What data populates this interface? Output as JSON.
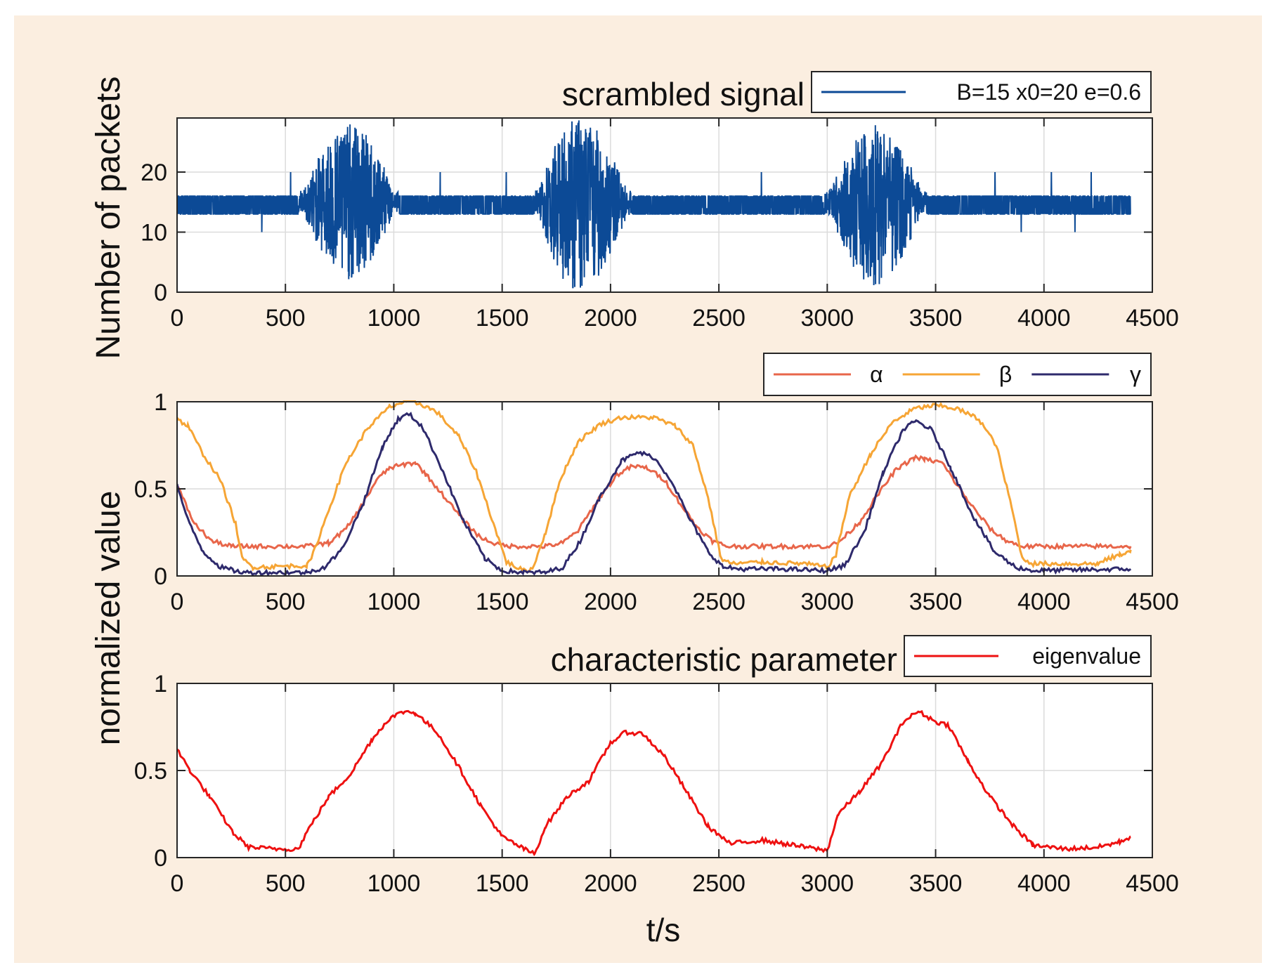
{
  "figure": {
    "background": "#fbeee0",
    "grid_color": "#dcdcdc"
  },
  "shared": {
    "ylabel_upper": "Number of packets",
    "ylabel_lower": "normalized value",
    "xlabel": "t/s"
  },
  "chart_data": [
    {
      "type": "line",
      "title": "scrambled signal",
      "xlim": [
        0,
        4500
      ],
      "ylim": [
        0,
        29
      ],
      "x_ticks": [
        0,
        500,
        1000,
        1500,
        2000,
        2500,
        3000,
        3500,
        4000,
        4500
      ],
      "y_ticks": [
        0,
        10,
        20
      ],
      "legend_location": "top-right",
      "series": [
        {
          "name": "B=15 x0=20 e=0.6",
          "color": "#0c4a96",
          "description": "noisy packet count around 15 with three high-variance bursts",
          "baseline": 15,
          "bursts": [
            {
              "start": 560,
              "peak": 800,
              "end": 1020,
              "min": 2,
              "max": 28
            },
            {
              "start": 1650,
              "peak": 1850,
              "end": 2100,
              "min": 0,
              "max": 29
            },
            {
              "start": 2990,
              "peak": 3220,
              "end": 3460,
              "min": 1,
              "max": 28
            }
          ]
        }
      ]
    },
    {
      "type": "line",
      "title": "",
      "xlim": [
        0,
        4500
      ],
      "ylim": [
        0,
        1
      ],
      "x_ticks": [
        0,
        500,
        1000,
        1500,
        2000,
        2500,
        3000,
        3500,
        4000,
        4500
      ],
      "y_ticks": [
        0,
        0.5,
        1
      ],
      "legend_location": "top-right",
      "series": [
        {
          "name": "α",
          "color": "#e8664a",
          "points": [
            [
              0,
              0.52
            ],
            [
              80,
              0.3
            ],
            [
              160,
              0.2
            ],
            [
              250,
              0.17
            ],
            [
              600,
              0.17
            ],
            [
              700,
              0.19
            ],
            [
              780,
              0.27
            ],
            [
              850,
              0.4
            ],
            [
              920,
              0.55
            ],
            [
              980,
              0.62
            ],
            [
              1050,
              0.64
            ],
            [
              1100,
              0.65
            ],
            [
              1150,
              0.58
            ],
            [
              1230,
              0.46
            ],
            [
              1320,
              0.32
            ],
            [
              1400,
              0.22
            ],
            [
              1480,
              0.18
            ],
            [
              1550,
              0.17
            ],
            [
              1700,
              0.17
            ],
            [
              1780,
              0.19
            ],
            [
              1850,
              0.26
            ],
            [
              1950,
              0.45
            ],
            [
              2030,
              0.58
            ],
            [
              2100,
              0.63
            ],
            [
              2170,
              0.62
            ],
            [
              2250,
              0.55
            ],
            [
              2330,
              0.4
            ],
            [
              2400,
              0.28
            ],
            [
              2470,
              0.2
            ],
            [
              2540,
              0.17
            ],
            [
              3000,
              0.17
            ],
            [
              3050,
              0.19
            ],
            [
              3150,
              0.31
            ],
            [
              3230,
              0.46
            ],
            [
              3310,
              0.6
            ],
            [
              3400,
              0.68
            ],
            [
              3450,
              0.67
            ],
            [
              3530,
              0.65
            ],
            [
              3600,
              0.52
            ],
            [
              3680,
              0.38
            ],
            [
              3760,
              0.26
            ],
            [
              3830,
              0.2
            ],
            [
              3900,
              0.17
            ],
            [
              4400,
              0.17
            ]
          ]
        },
        {
          "name": "β",
          "color": "#f6a535",
          "points": [
            [
              0,
              0.9
            ],
            [
              50,
              0.86
            ],
            [
              120,
              0.7
            ],
            [
              200,
              0.55
            ],
            [
              270,
              0.3
            ],
            [
              300,
              0.1
            ],
            [
              350,
              0.05
            ],
            [
              600,
              0.06
            ],
            [
              620,
              0.1
            ],
            [
              700,
              0.38
            ],
            [
              780,
              0.65
            ],
            [
              880,
              0.85
            ],
            [
              980,
              0.97
            ],
            [
              1050,
              1.0
            ],
            [
              1120,
              0.99
            ],
            [
              1200,
              0.94
            ],
            [
              1300,
              0.8
            ],
            [
              1380,
              0.6
            ],
            [
              1460,
              0.3
            ],
            [
              1520,
              0.08
            ],
            [
              1600,
              0.03
            ],
            [
              1640,
              0.04
            ],
            [
              1700,
              0.25
            ],
            [
              1770,
              0.56
            ],
            [
              1850,
              0.77
            ],
            [
              1950,
              0.87
            ],
            [
              2050,
              0.91
            ],
            [
              2200,
              0.91
            ],
            [
              2300,
              0.86
            ],
            [
              2380,
              0.75
            ],
            [
              2450,
              0.45
            ],
            [
              2510,
              0.1
            ],
            [
              2560,
              0.07
            ],
            [
              2700,
              0.08
            ],
            [
              2900,
              0.07
            ],
            [
              3000,
              0.05
            ],
            [
              3040,
              0.12
            ],
            [
              3100,
              0.45
            ],
            [
              3200,
              0.7
            ],
            [
              3300,
              0.88
            ],
            [
              3400,
              0.96
            ],
            [
              3500,
              0.98
            ],
            [
              3600,
              0.96
            ],
            [
              3700,
              0.9
            ],
            [
              3780,
              0.75
            ],
            [
              3850,
              0.4
            ],
            [
              3900,
              0.1
            ],
            [
              3950,
              0.07
            ],
            [
              4250,
              0.07
            ],
            [
              4300,
              0.1
            ],
            [
              4350,
              0.12
            ],
            [
              4400,
              0.15
            ]
          ]
        },
        {
          "name": "γ",
          "color": "#2e2a6c",
          "points": [
            [
              0,
              0.52
            ],
            [
              50,
              0.32
            ],
            [
              120,
              0.14
            ],
            [
              200,
              0.05
            ],
            [
              300,
              0.02
            ],
            [
              600,
              0.02
            ],
            [
              680,
              0.05
            ],
            [
              760,
              0.15
            ],
            [
              860,
              0.42
            ],
            [
              950,
              0.75
            ],
            [
              1020,
              0.9
            ],
            [
              1070,
              0.93
            ],
            [
              1130,
              0.86
            ],
            [
              1220,
              0.62
            ],
            [
              1320,
              0.32
            ],
            [
              1420,
              0.1
            ],
            [
              1500,
              0.03
            ],
            [
              1600,
              0.02
            ],
            [
              1700,
              0.02
            ],
            [
              1780,
              0.05
            ],
            [
              1860,
              0.2
            ],
            [
              1950,
              0.45
            ],
            [
              2050,
              0.66
            ],
            [
              2130,
              0.71
            ],
            [
              2200,
              0.68
            ],
            [
              2280,
              0.55
            ],
            [
              2360,
              0.34
            ],
            [
              2450,
              0.14
            ],
            [
              2520,
              0.05
            ],
            [
              2600,
              0.04
            ],
            [
              2800,
              0.04
            ],
            [
              3000,
              0.03
            ],
            [
              3080,
              0.06
            ],
            [
              3170,
              0.25
            ],
            [
              3260,
              0.6
            ],
            [
              3350,
              0.84
            ],
            [
              3410,
              0.89
            ],
            [
              3480,
              0.84
            ],
            [
              3570,
              0.62
            ],
            [
              3670,
              0.35
            ],
            [
              3770,
              0.14
            ],
            [
              3870,
              0.05
            ],
            [
              3950,
              0.03
            ],
            [
              4400,
              0.04
            ]
          ]
        }
      ]
    },
    {
      "type": "line",
      "title": "characteristic parameter",
      "xlim": [
        0,
        4500
      ],
      "ylim": [
        0,
        1
      ],
      "x_ticks": [
        0,
        500,
        1000,
        1500,
        2000,
        2500,
        3000,
        3500,
        4000,
        4500
      ],
      "y_ticks": [
        0,
        0.5,
        1
      ],
      "legend_location": "top-right",
      "series": [
        {
          "name": "eigenvalue",
          "color": "#ee1111",
          "points": [
            [
              0,
              0.62
            ],
            [
              60,
              0.5
            ],
            [
              150,
              0.35
            ],
            [
              260,
              0.14
            ],
            [
              330,
              0.06
            ],
            [
              450,
              0.05
            ],
            [
              560,
              0.05
            ],
            [
              600,
              0.15
            ],
            [
              700,
              0.35
            ],
            [
              800,
              0.48
            ],
            [
              900,
              0.68
            ],
            [
              980,
              0.8
            ],
            [
              1050,
              0.84
            ],
            [
              1100,
              0.83
            ],
            [
              1200,
              0.72
            ],
            [
              1300,
              0.52
            ],
            [
              1400,
              0.3
            ],
            [
              1500,
              0.12
            ],
            [
              1600,
              0.05
            ],
            [
              1650,
              0.02
            ],
            [
              1700,
              0.18
            ],
            [
              1800,
              0.35
            ],
            [
              1900,
              0.44
            ],
            [
              2000,
              0.66
            ],
            [
              2070,
              0.72
            ],
            [
              2150,
              0.71
            ],
            [
              2250,
              0.58
            ],
            [
              2350,
              0.38
            ],
            [
              2450,
              0.18
            ],
            [
              2550,
              0.08
            ],
            [
              2700,
              0.1
            ],
            [
              2800,
              0.08
            ],
            [
              2950,
              0.05
            ],
            [
              3000,
              0.04
            ],
            [
              3050,
              0.25
            ],
            [
              3150,
              0.38
            ],
            [
              3250,
              0.54
            ],
            [
              3350,
              0.78
            ],
            [
              3420,
              0.84
            ],
            [
              3500,
              0.78
            ],
            [
              3560,
              0.76
            ],
            [
              3650,
              0.55
            ],
            [
              3750,
              0.35
            ],
            [
              3860,
              0.18
            ],
            [
              3950,
              0.07
            ],
            [
              4100,
              0.05
            ],
            [
              4250,
              0.06
            ],
            [
              4350,
              0.09
            ],
            [
              4400,
              0.12
            ]
          ]
        }
      ]
    }
  ]
}
